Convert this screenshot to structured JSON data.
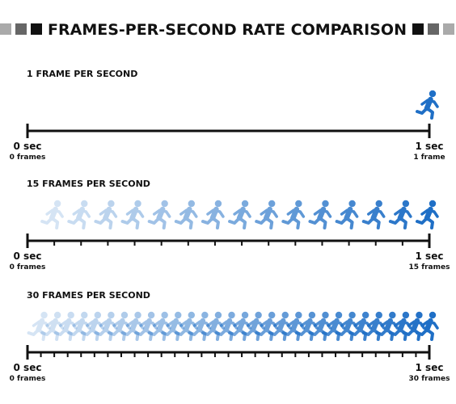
{
  "header": {
    "title": "FRAMES-PER-SECOND RATE COMPARISON"
  },
  "sections": [
    {
      "label": "1 FRAME PER SECOND",
      "frames": 1,
      "start": {
        "time": "0 sec",
        "frames": "0 frames"
      },
      "end": {
        "time": "1 sec",
        "frames": "1 frame"
      }
    },
    {
      "label": "15 FRAMES PER SECOND",
      "frames": 15,
      "start": {
        "time": "0 sec",
        "frames": "0 frames"
      },
      "end": {
        "time": "1 sec",
        "frames": "15 frames"
      }
    },
    {
      "label": "30 FRAMES PER SECOND",
      "frames": 30,
      "start": {
        "time": "0 sec",
        "frames": "0 frames"
      },
      "end": {
        "time": "1 sec",
        "frames": "30 frames"
      }
    }
  ]
}
